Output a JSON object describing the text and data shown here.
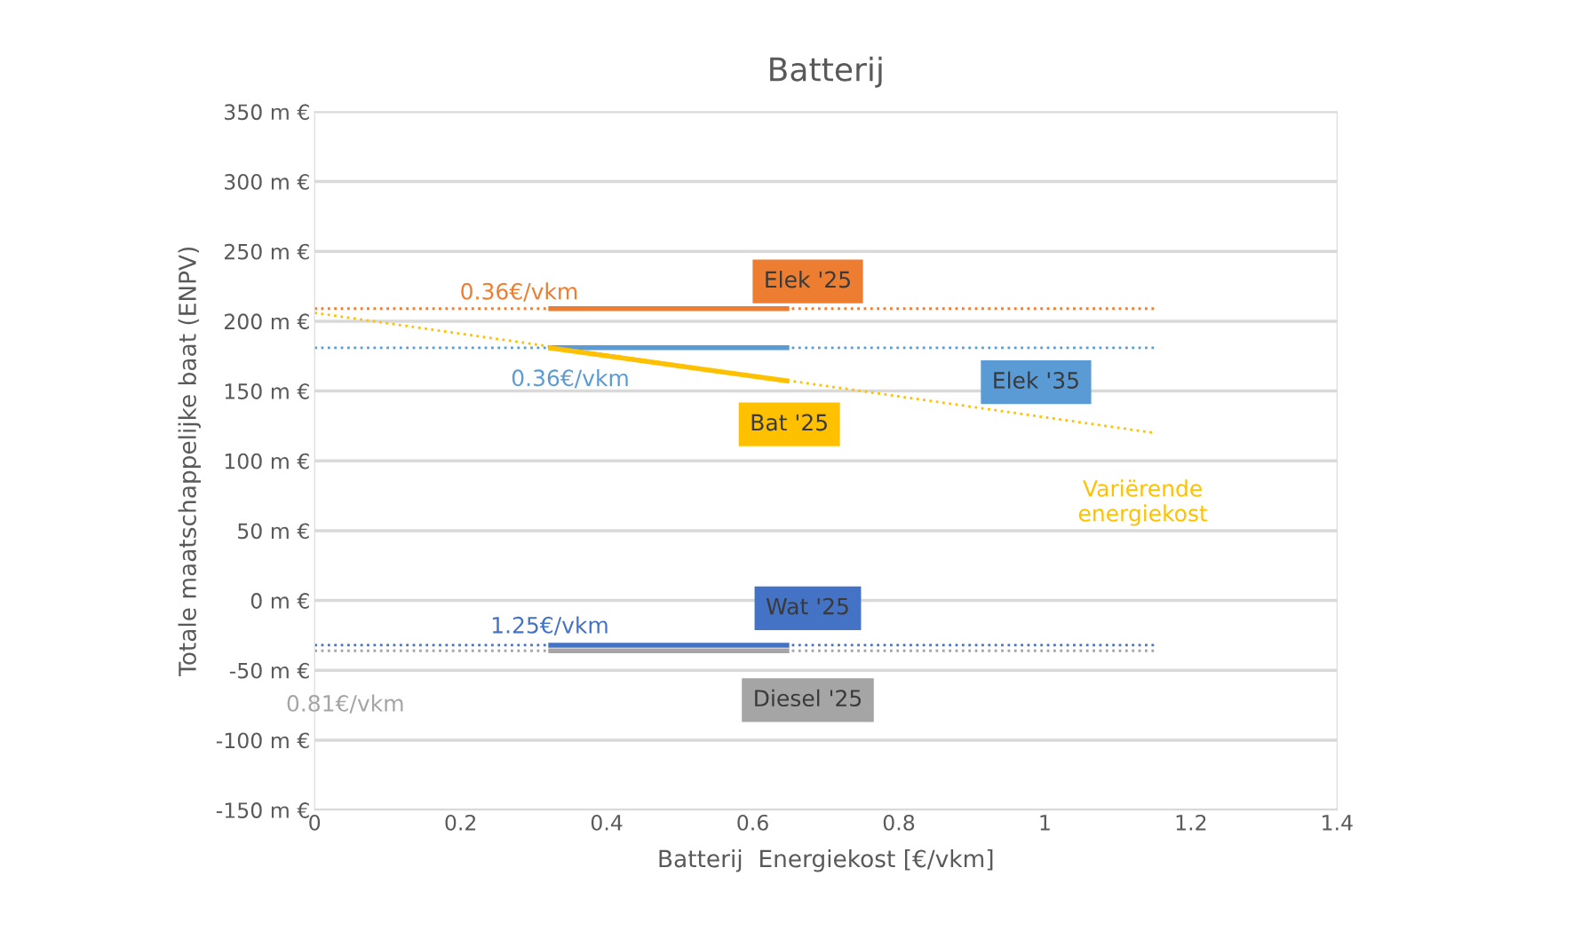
{
  "chart_data": {
    "type": "line",
    "title": "Batterij",
    "xlabel": "Batterij  Energiekost [€/vkm]",
    "ylabel": "Totale maatschappelijke baat (ENPV)",
    "series": [
      {
        "name": "Elek '25",
        "color": "#ed7d31",
        "x": [
          0.32,
          0.65
        ],
        "values": [
          209,
          209
        ],
        "line_style": "solid"
      },
      {
        "name": "Elek '35",
        "color": "#5b9bd5",
        "x": [
          0.32,
          0.65
        ],
        "values": [
          181,
          181
        ],
        "line_style": "solid"
      },
      {
        "name": "Bat '25",
        "color": "#ffc000",
        "x": [
          0.32,
          0.65
        ],
        "values": [
          181,
          157
        ],
        "line_style": "solid"
      },
      {
        "name": "Wat '25",
        "color": "#4472c4",
        "x": [
          0.32,
          0.65
        ],
        "values": [
          -32,
          -32
        ],
        "line_style": "solid"
      },
      {
        "name": "Diesel '25",
        "color": "#a5a5a5",
        "x": [
          0.32,
          0.65
        ],
        "values": [
          -36,
          -36
        ],
        "line_style": "solid"
      },
      {
        "color": "#ed7d31",
        "x": [
          0,
          1.15
        ],
        "values": [
          209,
          209
        ],
        "line_style": "dotted"
      },
      {
        "color": "#5b9bd5",
        "x": [
          0,
          1.15
        ],
        "values": [
          181,
          181
        ],
        "line_style": "dotted"
      },
      {
        "color": "#ffc000",
        "x": [
          0,
          1.15
        ],
        "values": [
          206,
          120
        ],
        "line_style": "dotted"
      },
      {
        "color": "#4472c4",
        "x": [
          0,
          1.15
        ],
        "values": [
          -32,
          -32
        ],
        "line_style": "dotted"
      },
      {
        "color": "#a5a5a5",
        "x": [
          0,
          1.15
        ],
        "values": [
          -36,
          -36
        ],
        "line_style": "dotted"
      }
    ],
    "annotations": [
      "0.36€/vkm",
      "0.36€/vkm",
      "1.25€/vkm",
      "0.81€/vkm",
      "Variërende\nenergiekost"
    ],
    "xlim": [
      0,
      1.4
    ],
    "xticks": [
      0,
      0.2,
      0.4,
      0.6,
      0.8,
      1,
      1.2,
      1.4
    ],
    "ylim": [
      -150,
      350
    ],
    "yticks": [
      {
        "value": -150,
        "label": "-150 m €"
      },
      {
        "value": -100,
        "label": "-100 m €"
      },
      {
        "value": -50,
        "label": "-50 m €"
      },
      {
        "value": 0,
        "label": "0 m €"
      },
      {
        "value": 50,
        "label": "50 m €"
      },
      {
        "value": 100,
        "label": "100 m €"
      },
      {
        "value": 150,
        "label": "150 m €"
      },
      {
        "value": 200,
        "label": "200 m €"
      },
      {
        "value": 250,
        "label": "250 m €"
      },
      {
        "value": 300,
        "label": "300 m €"
      },
      {
        "value": 350,
        "label": "350 m €"
      }
    ],
    "grid": "y",
    "legend": false,
    "marker": "none"
  }
}
